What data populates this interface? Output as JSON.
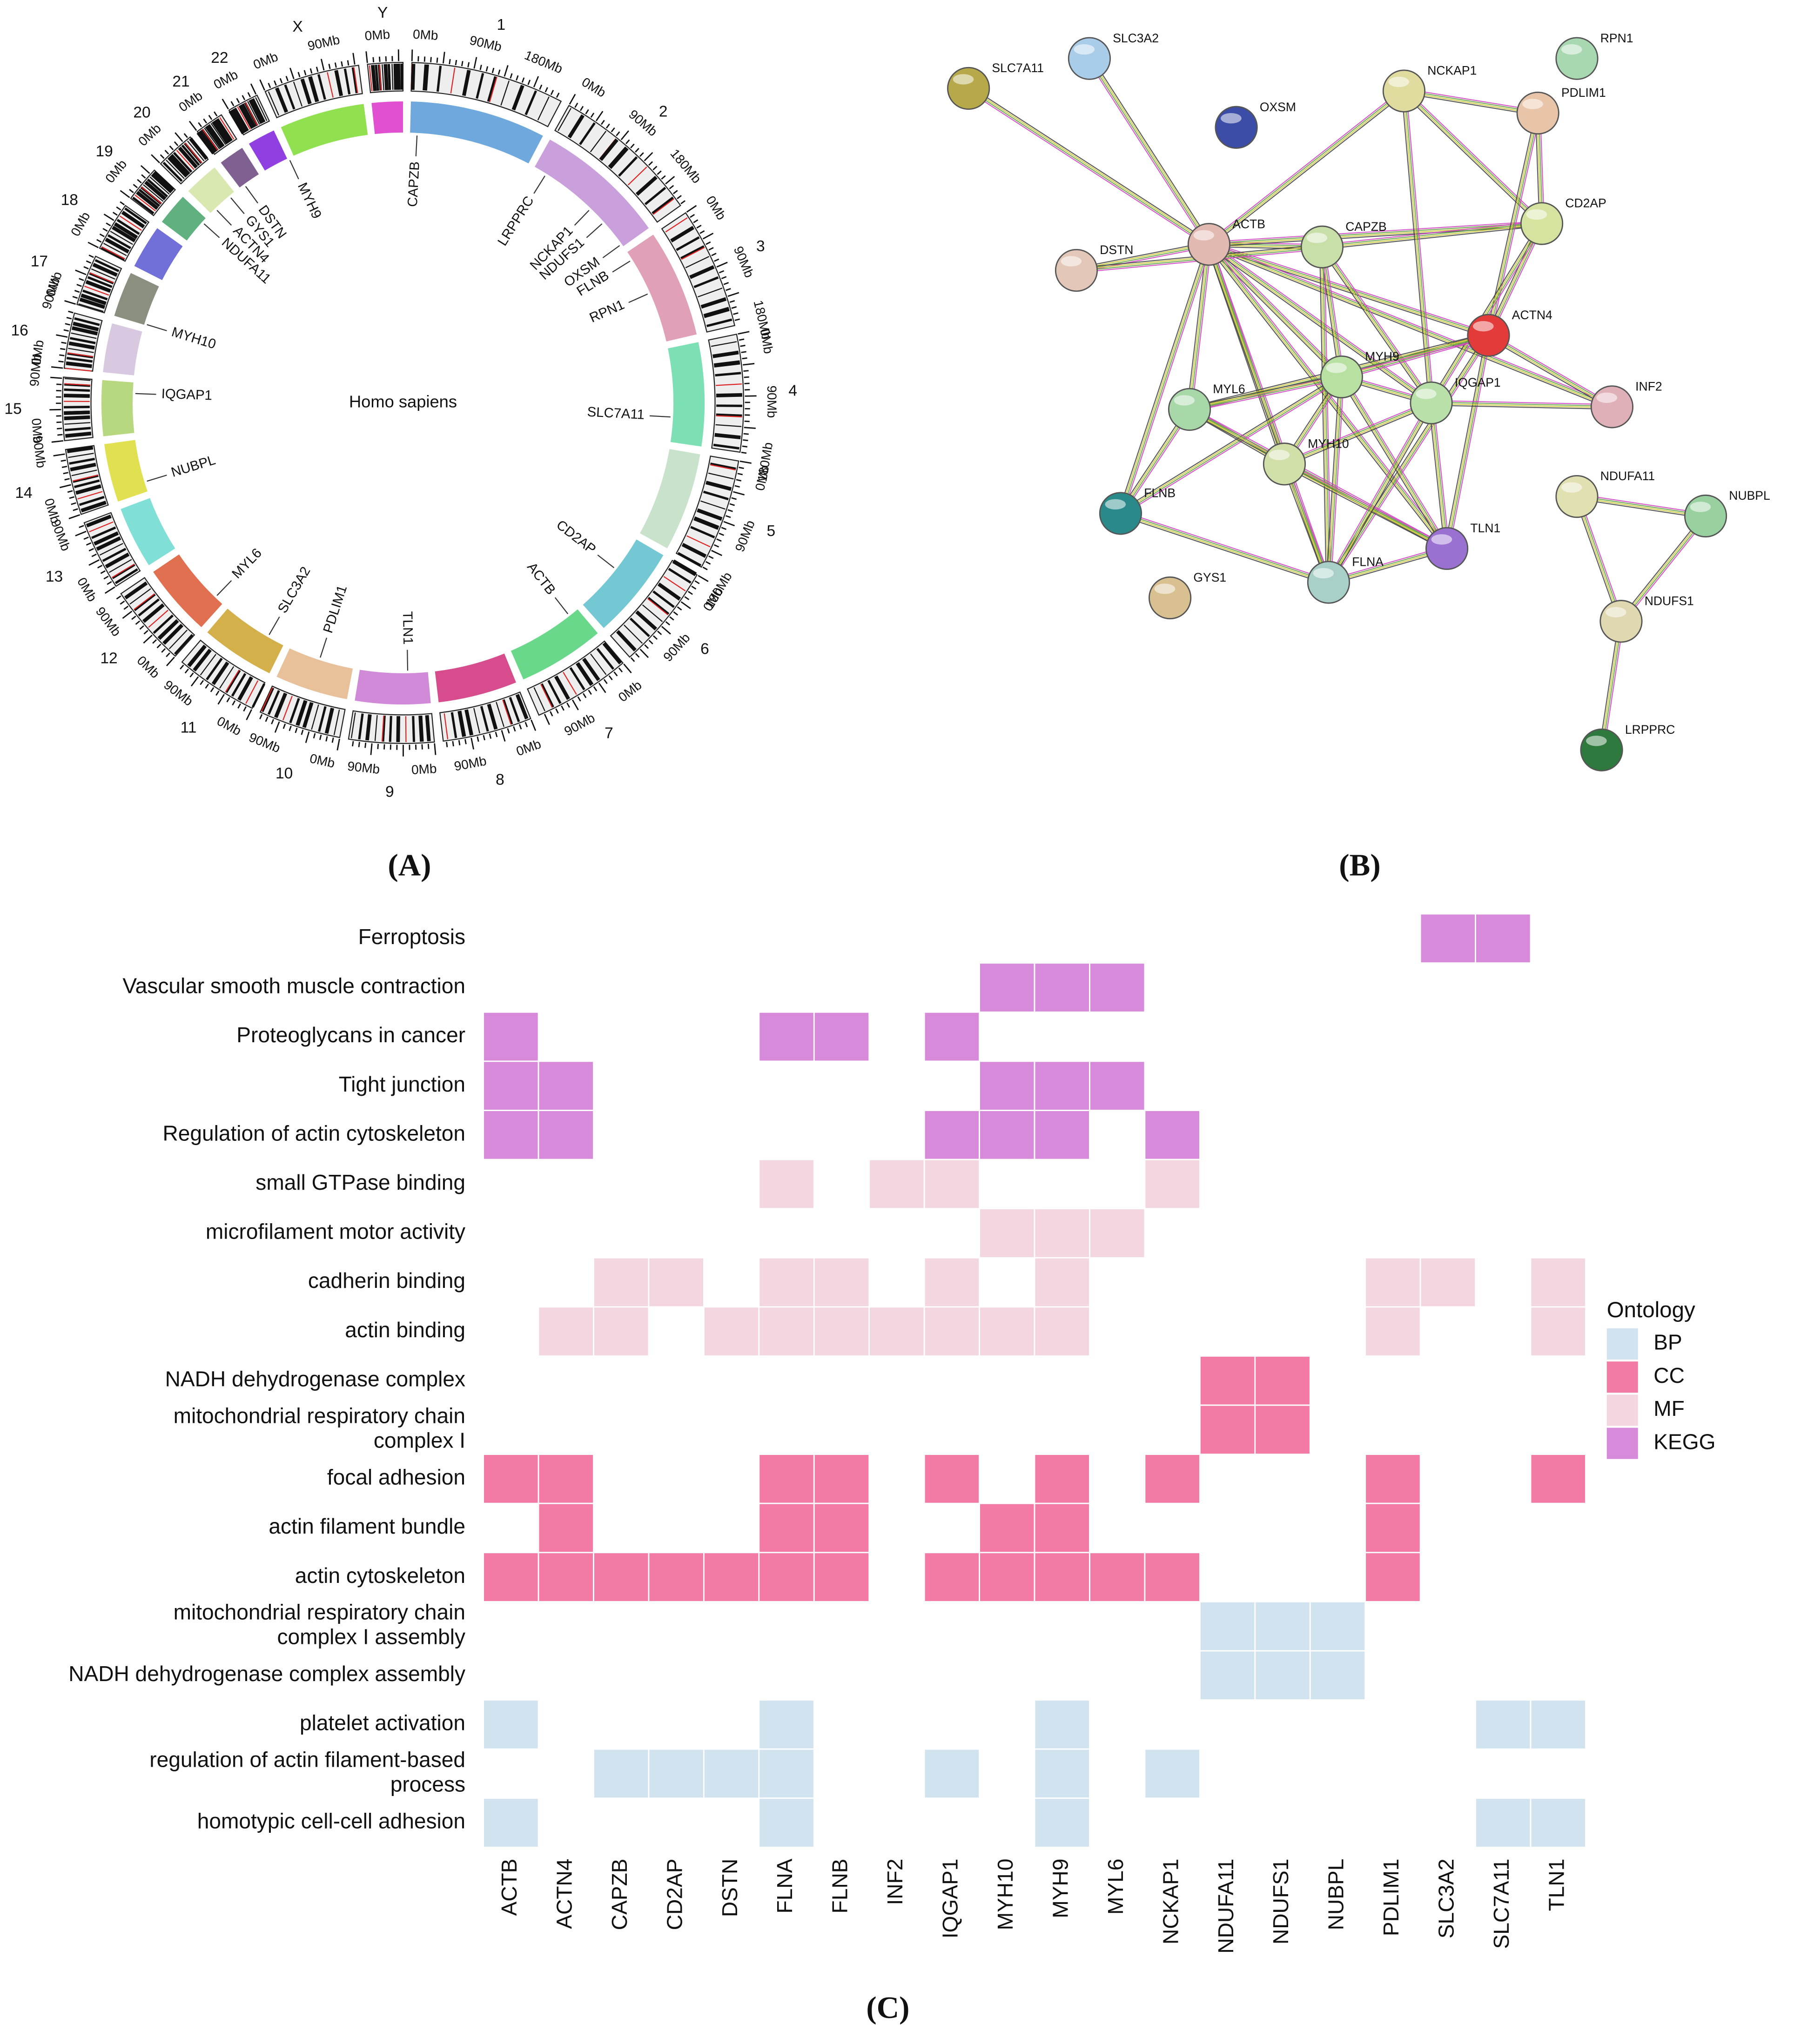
{
  "panel_labels": [
    "(A)",
    "(B)",
    "(C)"
  ],
  "circos": {
    "center_label": "Homo sapiens",
    "chromosomes": [
      {
        "name": "1",
        "color": "#6fa8dc",
        "ticks": [
          "0Mb",
          "90Mb",
          "180Mb"
        ]
      },
      {
        "name": "2",
        "color": "#c9a0dc",
        "ticks": [
          "0Mb",
          "90Mb",
          "180Mb"
        ]
      },
      {
        "name": "3",
        "color": "#e0a0b8",
        "ticks": [
          "0Mb",
          "90Mb",
          "180Mb"
        ]
      },
      {
        "name": "4",
        "color": "#7de0b4",
        "ticks": [
          "0Mb",
          "90Mb",
          "180Mb"
        ]
      },
      {
        "name": "5",
        "color": "#c8e2cc",
        "ticks": [
          "0Mb",
          "90Mb",
          "180Mb"
        ]
      },
      {
        "name": "6",
        "color": "#74c8d4",
        "ticks": [
          "0Mb",
          "90Mb"
        ]
      },
      {
        "name": "7",
        "color": "#6ad88a",
        "ticks": [
          "0Mb",
          "90Mb"
        ]
      },
      {
        "name": "8",
        "color": "#d64c8c",
        "ticks": [
          "0Mb",
          "90Mb"
        ]
      },
      {
        "name": "9",
        "color": "#d08ad8",
        "ticks": [
          "0Mb",
          "90Mb"
        ]
      },
      {
        "name": "10",
        "color": "#e8c09a",
        "ticks": [
          "0Mb",
          "90Mb"
        ]
      },
      {
        "name": "11",
        "color": "#d4b04a",
        "ticks": [
          "0Mb",
          "90Mb"
        ]
      },
      {
        "name": "12",
        "color": "#e07050",
        "ticks": [
          "0Mb",
          "90Mb"
        ]
      },
      {
        "name": "13",
        "color": "#80e0d8",
        "ticks": [
          "0Mb",
          "90Mb"
        ]
      },
      {
        "name": "14",
        "color": "#e0e050",
        "ticks": [
          "0Mb",
          "90Mb"
        ]
      },
      {
        "name": "15",
        "color": "#b8d880",
        "ticks": [
          "0Mb",
          "90Mb"
        ]
      },
      {
        "name": "16",
        "color": "#d8c8e0",
        "ticks": [
          "0Mb",
          "90Mb"
        ]
      },
      {
        "name": "17",
        "color": "#8a9080",
        "ticks": [
          "0Mb"
        ]
      },
      {
        "name": "18",
        "color": "#7070d8",
        "ticks": [
          "0Mb"
        ]
      },
      {
        "name": "19",
        "color": "#60b080",
        "ticks": [
          "0Mb"
        ]
      },
      {
        "name": "20",
        "color": "#d8e8b0",
        "ticks": [
          "0Mb"
        ]
      },
      {
        "name": "21",
        "color": "#806090",
        "ticks": [
          "0Mb"
        ]
      },
      {
        "name": "22",
        "color": "#9040e0",
        "ticks": [
          "0Mb"
        ]
      },
      {
        "name": "X",
        "color": "#90e050",
        "ticks": [
          "0Mb",
          "90Mb"
        ]
      },
      {
        "name": "Y",
        "color": "#e050d0",
        "ticks": [
          "0Mb"
        ]
      }
    ],
    "genes": [
      "CAPZB",
      "LRPPRC",
      "NCKAP1",
      "NDUFS1",
      "OXSM",
      "FLNB",
      "RPN1",
      "SLC7A11",
      "CD2AP",
      "ACTB",
      "TLN1",
      "PDLIM1",
      "SLC3A2",
      "MYL6",
      "NUBPL",
      "IQGAP1",
      "MYH10",
      "NDUFA11",
      "ACTN4",
      "GYS1",
      "DSTN",
      "MYH9"
    ]
  },
  "network": {
    "nodes": [
      {
        "label": "SLC7A11",
        "color": "#b7a84a"
      },
      {
        "label": "SLC3A2",
        "color": "#a9cde8"
      },
      {
        "label": "OXSM",
        "color": "#3b4da6"
      },
      {
        "label": "NCKAP1",
        "color": "#e0dca0"
      },
      {
        "label": "RPN1",
        "color": "#a8d8b0"
      },
      {
        "label": "PDLIM1",
        "color": "#e8c4a8"
      },
      {
        "label": "ACTB",
        "color": "#e2b9b0"
      },
      {
        "label": "CAPZB",
        "color": "#c8e0a8"
      },
      {
        "label": "CD2AP",
        "color": "#d4e4a0"
      },
      {
        "label": "DSTN",
        "color": "#e3c7b8"
      },
      {
        "label": "ACTN4",
        "color": "#e33a3a"
      },
      {
        "label": "MYH9",
        "color": "#b8e0a0"
      },
      {
        "label": "IQGAP1",
        "color": "#b8e0a8"
      },
      {
        "label": "INF2",
        "color": "#e0b0b8"
      },
      {
        "label": "MYL6",
        "color": "#a8d8a8"
      },
      {
        "label": "MYH10",
        "color": "#d0e0a8"
      },
      {
        "label": "FLNB",
        "color": "#2a8a8a"
      },
      {
        "label": "TLN1",
        "color": "#9a70d0"
      },
      {
        "label": "FLNA",
        "color": "#a8d0c8"
      },
      {
        "label": "GYS1",
        "color": "#d8c090"
      },
      {
        "label": "NDUFA11",
        "color": "#e0e0b0"
      },
      {
        "label": "NUBPL",
        "color": "#98d0a0"
      },
      {
        "label": "NDUFS1",
        "color": "#e0d8b0"
      },
      {
        "label": "LRPPRC",
        "color": "#2e7a3e"
      }
    ]
  },
  "chart_data": {
    "type": "heatmap",
    "columns": [
      "ACTB",
      "ACTN4",
      "CAPZB",
      "CD2AP",
      "DSTN",
      "FLNA",
      "FLNB",
      "INF2",
      "IQGAP1",
      "MYH10",
      "MYH9",
      "MYL6",
      "NCKAP1",
      "NDUFA11",
      "NDUFS1",
      "NUBPL",
      "PDLIM1",
      "SLC3A2",
      "SLC7A11",
      "TLN1"
    ],
    "rows": [
      {
        "term": "Ferroptosis",
        "ontology": "KEGG",
        "genes": [
          "SLC3A2",
          "SLC7A11"
        ]
      },
      {
        "term": "Vascular smooth muscle contraction",
        "ontology": "KEGG",
        "genes": [
          "MYH10",
          "MYH9",
          "MYL6"
        ]
      },
      {
        "term": "Proteoglycans in cancer",
        "ontology": "KEGG",
        "genes": [
          "ACTB",
          "FLNA",
          "FLNB",
          "IQGAP1"
        ]
      },
      {
        "term": "Tight junction",
        "ontology": "KEGG",
        "genes": [
          "ACTB",
          "ACTN4",
          "MYH10",
          "MYH9",
          "MYL6"
        ]
      },
      {
        "term": "Regulation of actin cytoskeleton",
        "ontology": "KEGG",
        "genes": [
          "ACTB",
          "ACTN4",
          "IQGAP1",
          "MYH10",
          "MYH9",
          "NCKAP1"
        ]
      },
      {
        "term": "small GTPase binding",
        "ontology": "MF",
        "genes": [
          "FLNA",
          "INF2",
          "IQGAP1",
          "NCKAP1"
        ]
      },
      {
        "term": "microfilament motor activity",
        "ontology": "MF",
        "genes": [
          "MYH10",
          "MYH9",
          "MYL6"
        ]
      },
      {
        "term": "cadherin binding",
        "ontology": "MF",
        "genes": [
          "CAPZB",
          "CD2AP",
          "FLNA",
          "FLNB",
          "IQGAP1",
          "MYH9",
          "PDLIM1",
          "SLC3A2",
          "TLN1"
        ]
      },
      {
        "term": "actin binding",
        "ontology": "MF",
        "genes": [
          "ACTN4",
          "CAPZB",
          "DSTN",
          "FLNA",
          "FLNB",
          "INF2",
          "IQGAP1",
          "MYH10",
          "MYH9",
          "PDLIM1",
          "TLN1"
        ]
      },
      {
        "term": "NADH dehydrogenase complex",
        "ontology": "CC",
        "genes": [
          "NDUFA11",
          "NDUFS1"
        ]
      },
      {
        "term": [
          "mitochondrial respiratory chain",
          "complex I"
        ],
        "ontology": "CC",
        "genes": [
          "NDUFA11",
          "NDUFS1"
        ]
      },
      {
        "term": "focal adhesion",
        "ontology": "CC",
        "genes": [
          "ACTB",
          "ACTN4",
          "FLNA",
          "FLNB",
          "IQGAP1",
          "MYH9",
          "NCKAP1",
          "PDLIM1",
          "TLN1"
        ]
      },
      {
        "term": "actin filament bundle",
        "ontology": "CC",
        "genes": [
          "ACTN4",
          "FLNA",
          "FLNB",
          "MYH10",
          "MYH9",
          "PDLIM1"
        ]
      },
      {
        "term": "actin cytoskeleton",
        "ontology": "CC",
        "genes": [
          "ACTB",
          "ACTN4",
          "CAPZB",
          "CD2AP",
          "DSTN",
          "FLNA",
          "FLNB",
          "IQGAP1",
          "MYH10",
          "MYH9",
          "MYL6",
          "NCKAP1",
          "PDLIM1"
        ]
      },
      {
        "term": [
          "mitochondrial respiratory chain",
          "complex I assembly"
        ],
        "ontology": "BP",
        "genes": [
          "NDUFA11",
          "NDUFS1",
          "NUBPL"
        ]
      },
      {
        "term": "NADH dehydrogenase complex assembly",
        "ontology": "BP",
        "genes": [
          "NDUFA11",
          "NDUFS1",
          "NUBPL"
        ]
      },
      {
        "term": "platelet activation",
        "ontology": "BP",
        "genes": [
          "ACTB",
          "FLNA",
          "MYH9",
          "SLC7A11",
          "TLN1"
        ]
      },
      {
        "term": [
          "regulation of actin filament-based",
          "process"
        ],
        "ontology": "BP",
        "genes": [
          "CAPZB",
          "CD2AP",
          "DSTN",
          "FLNA",
          "IQGAP1",
          "MYH9",
          "NCKAP1"
        ]
      },
      {
        "term": "homotypic cell-cell adhesion",
        "ontology": "BP",
        "genes": [
          "ACTB",
          "FLNA",
          "MYH9",
          "SLC7A11",
          "TLN1"
        ]
      }
    ],
    "legend": {
      "title": "Ontology",
      "position": "right",
      "entries": [
        {
          "name": "BP",
          "color": "#d0e3ee"
        },
        {
          "name": "CC",
          "color": "#f27aa4"
        },
        {
          "name": "MF",
          "color": "#f3d6df"
        },
        {
          "name": "KEGG",
          "color": "#d68ad9"
        }
      ]
    }
  }
}
